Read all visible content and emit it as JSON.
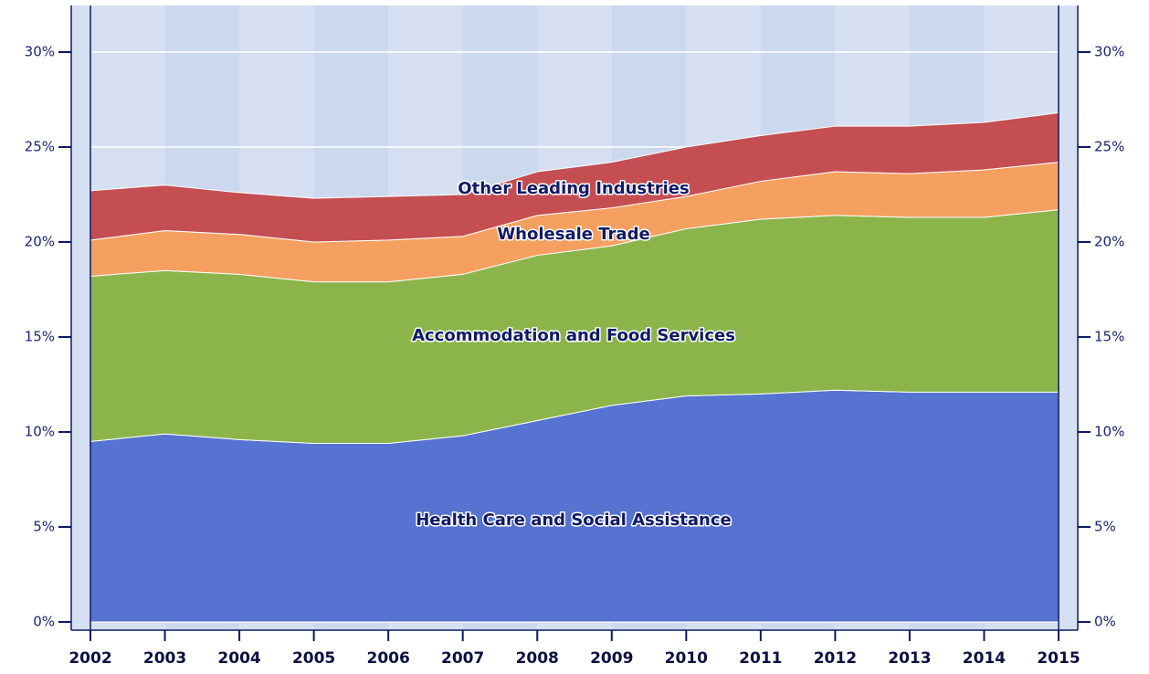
{
  "chart_data": {
    "type": "stacked_area",
    "x": [
      2002,
      2003,
      2004,
      2005,
      2006,
      2007,
      2008,
      2009,
      2010,
      2011,
      2012,
      2013,
      2014,
      2015
    ],
    "xlim": [
      2002,
      2015
    ],
    "xticks": [
      2002,
      2003,
      2004,
      2005,
      2006,
      2007,
      2008,
      2009,
      2010,
      2011,
      2012,
      2013,
      2014,
      2015
    ],
    "ylim": [
      0,
      30
    ],
    "yticks": [
      {
        "value": 0,
        "label": "0%"
      },
      {
        "value": 5,
        "label": "5%"
      },
      {
        "value": 10,
        "label": "10%"
      },
      {
        "value": 15,
        "label": "15%"
      },
      {
        "value": 20,
        "label": "20%"
      },
      {
        "value": 25,
        "label": "25%"
      },
      {
        "value": 30,
        "label": "30%"
      }
    ],
    "grid": true,
    "series": [
      {
        "name": "Health Care and Social Assistance",
        "color": "#5673d1",
        "values": [
          9.5,
          9.9,
          9.6,
          9.4,
          9.4,
          9.8,
          10.6,
          11.4,
          11.9,
          12.0,
          12.2,
          12.1,
          12.1,
          12.1
        ]
      },
      {
        "name": "Accommodation and Food Services",
        "color": "#8bb54a",
        "values": [
          8.7,
          8.6,
          8.7,
          8.5,
          8.5,
          8.5,
          8.7,
          8.4,
          8.8,
          9.2,
          9.2,
          9.2,
          9.2,
          9.6
        ]
      },
      {
        "name": "Wholesale Trade",
        "color": "#f5a060",
        "values": [
          1.9,
          2.1,
          2.1,
          2.1,
          2.2,
          2.0,
          2.1,
          2.0,
          1.7,
          2.0,
          2.3,
          2.3,
          2.5,
          2.5
        ]
      },
      {
        "name": "Other Leading Industries",
        "color": "#c44e52",
        "values": [
          2.6,
          2.4,
          2.2,
          2.3,
          2.3,
          2.2,
          2.3,
          2.4,
          2.6,
          2.4,
          2.4,
          2.5,
          2.5,
          2.6
        ]
      }
    ]
  }
}
